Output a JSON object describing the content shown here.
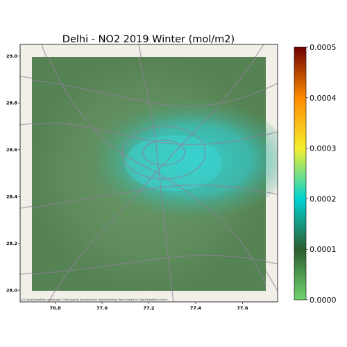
{
  "title": "Delhi - NO2 2019 Winter (mol/m2)",
  "attribution": "(C) OpenStreetMap contributors, Tiles style by Humanitarian OpenStreetMap Team hosted by OpenStreetMap France",
  "map": {
    "lon_range": [
      76.65,
      77.75
    ],
    "lat_range": [
      27.95,
      29.05
    ],
    "data_lon_range": [
      76.7,
      77.7
    ],
    "data_lat_range": [
      28.0,
      29.0
    ],
    "x_ticks": [
      76.8,
      77.0,
      77.2,
      77.4,
      77.6
    ],
    "x_tick_labels": [
      "76.8",
      "77.0",
      "77.2",
      "77.4",
      "77.6"
    ],
    "y_ticks": [
      28.0,
      28.2,
      28.4,
      28.6,
      28.8,
      29.0
    ],
    "y_tick_labels": [
      "28.0",
      "28.2",
      "28.4",
      "28.6",
      "28.8",
      "29.0"
    ]
  },
  "colorbar": {
    "range": [
      0.0,
      0.0005
    ],
    "ticks": [
      0.0,
      0.0001,
      0.0002,
      0.0003,
      0.0004,
      0.0005
    ],
    "tick_labels": [
      "0.0000",
      "0.0001",
      "0.0002",
      "0.0003",
      "0.0004",
      "0.0005"
    ],
    "colors": [
      "#6fd46f",
      "#2e5e30",
      "#00d2d2",
      "#f6ee2f",
      "#ff8a00",
      "#6e0000"
    ]
  }
}
